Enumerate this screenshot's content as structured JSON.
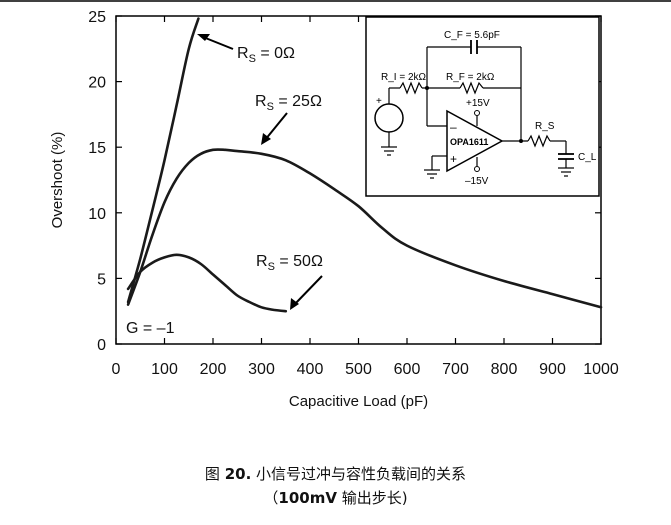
{
  "chart_data": {
    "type": "line",
    "title": "",
    "xlabel": "Capacitive Load (pF)",
    "ylabel": "Overshoot (%)",
    "xlim": [
      0,
      1000
    ],
    "ylim": [
      0,
      25
    ],
    "x_ticks": [
      0,
      100,
      200,
      300,
      400,
      500,
      600,
      700,
      800,
      900,
      1000
    ],
    "y_ticks": [
      0,
      5,
      10,
      15,
      20,
      25
    ],
    "grid": false,
    "series": [
      {
        "name": "R_S = 0Ω",
        "x": [
          25,
          50,
          75,
          100,
          125,
          150,
          170
        ],
        "y": [
          3.2,
          6.5,
          10.2,
          14.0,
          18.2,
          22.5,
          24.8
        ]
      },
      {
        "name": "R_S = 25Ω",
        "x": [
          25,
          50,
          75,
          100,
          125,
          150,
          175,
          200,
          225,
          250,
          300,
          350,
          400,
          450,
          500,
          550,
          600,
          700,
          800,
          900,
          1000
        ],
        "y": [
          3.0,
          5.5,
          8.3,
          10.8,
          12.6,
          13.8,
          14.5,
          14.8,
          14.8,
          14.7,
          14.5,
          14.0,
          13.0,
          11.8,
          10.5,
          8.8,
          7.5,
          6.0,
          4.8,
          3.8,
          2.8
        ]
      },
      {
        "name": "R_S = 50Ω",
        "x": [
          25,
          50,
          75,
          100,
          125,
          150,
          175,
          200,
          225,
          250,
          275,
          300,
          325,
          350
        ],
        "y": [
          4.2,
          5.5,
          6.2,
          6.6,
          6.8,
          6.6,
          6.1,
          5.3,
          4.5,
          3.7,
          3.2,
          2.8,
          2.6,
          2.5
        ]
      }
    ],
    "annotations": [
      {
        "id": "rs0",
        "text": "R_S = 0Ω"
      },
      {
        "id": "rs25",
        "text": "R_S = 25Ω"
      },
      {
        "id": "rs50",
        "text": "R_S = 50Ω"
      },
      {
        "id": "gain",
        "text": "G = –1"
      }
    ]
  },
  "schematic": {
    "cf_label": "C_F = 5.6pF",
    "ri_label": "R_I = 2kΩ",
    "rf_label": "R_F = 2kΩ",
    "vpos": "+15V",
    "vneg": "–15V",
    "opamp": "OPA1611",
    "rs": "R_S",
    "cl": "C_L",
    "minus": "–",
    "plus": "+",
    "src_plus": "+"
  },
  "caption": {
    "prefix": "图 ",
    "number": "20.",
    "title": " 小信号过冲与容性负载间的关系",
    "line2_open": "（",
    "line2_bold": "100mV",
    "line2_rest": " 输出步长)"
  }
}
